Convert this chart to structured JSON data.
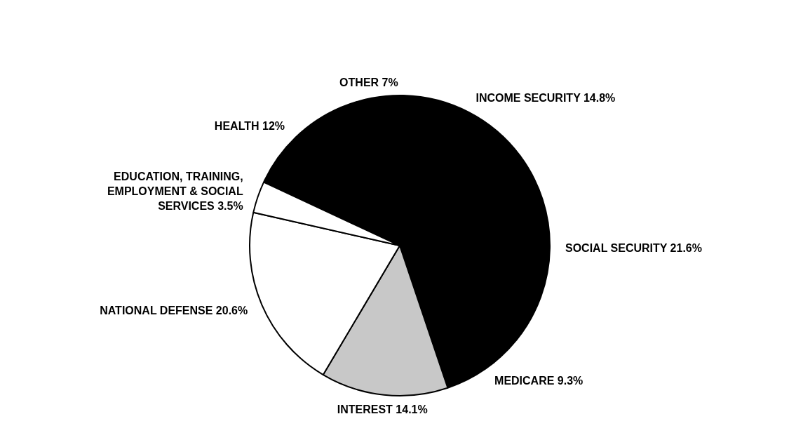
{
  "chart_data": {
    "type": "pie",
    "categories": [
      "HEALTH",
      "OTHER",
      "INCOME SECURITY",
      "SOCIAL SECURITY",
      "MEDICARE",
      "INTEREST",
      "NATIONAL DEFENSE",
      "EDUCATION, TRAINING, EMPLOYMENT & SOCIAL SERVICES"
    ],
    "values": [
      12,
      7,
      14.8,
      21.6,
      9.3,
      14.1,
      20.6,
      3.5
    ],
    "value_labels": [
      "12%",
      "7%",
      "14.8%",
      "21.6%",
      "9.3%",
      "14.1%",
      "20.6%",
      "3.5%"
    ],
    "colors": [
      "#000000",
      "#000000",
      "#000000",
      "#000000",
      "#000000",
      "#c8c8c8",
      "#ffffff",
      "#ffffff"
    ]
  }
}
